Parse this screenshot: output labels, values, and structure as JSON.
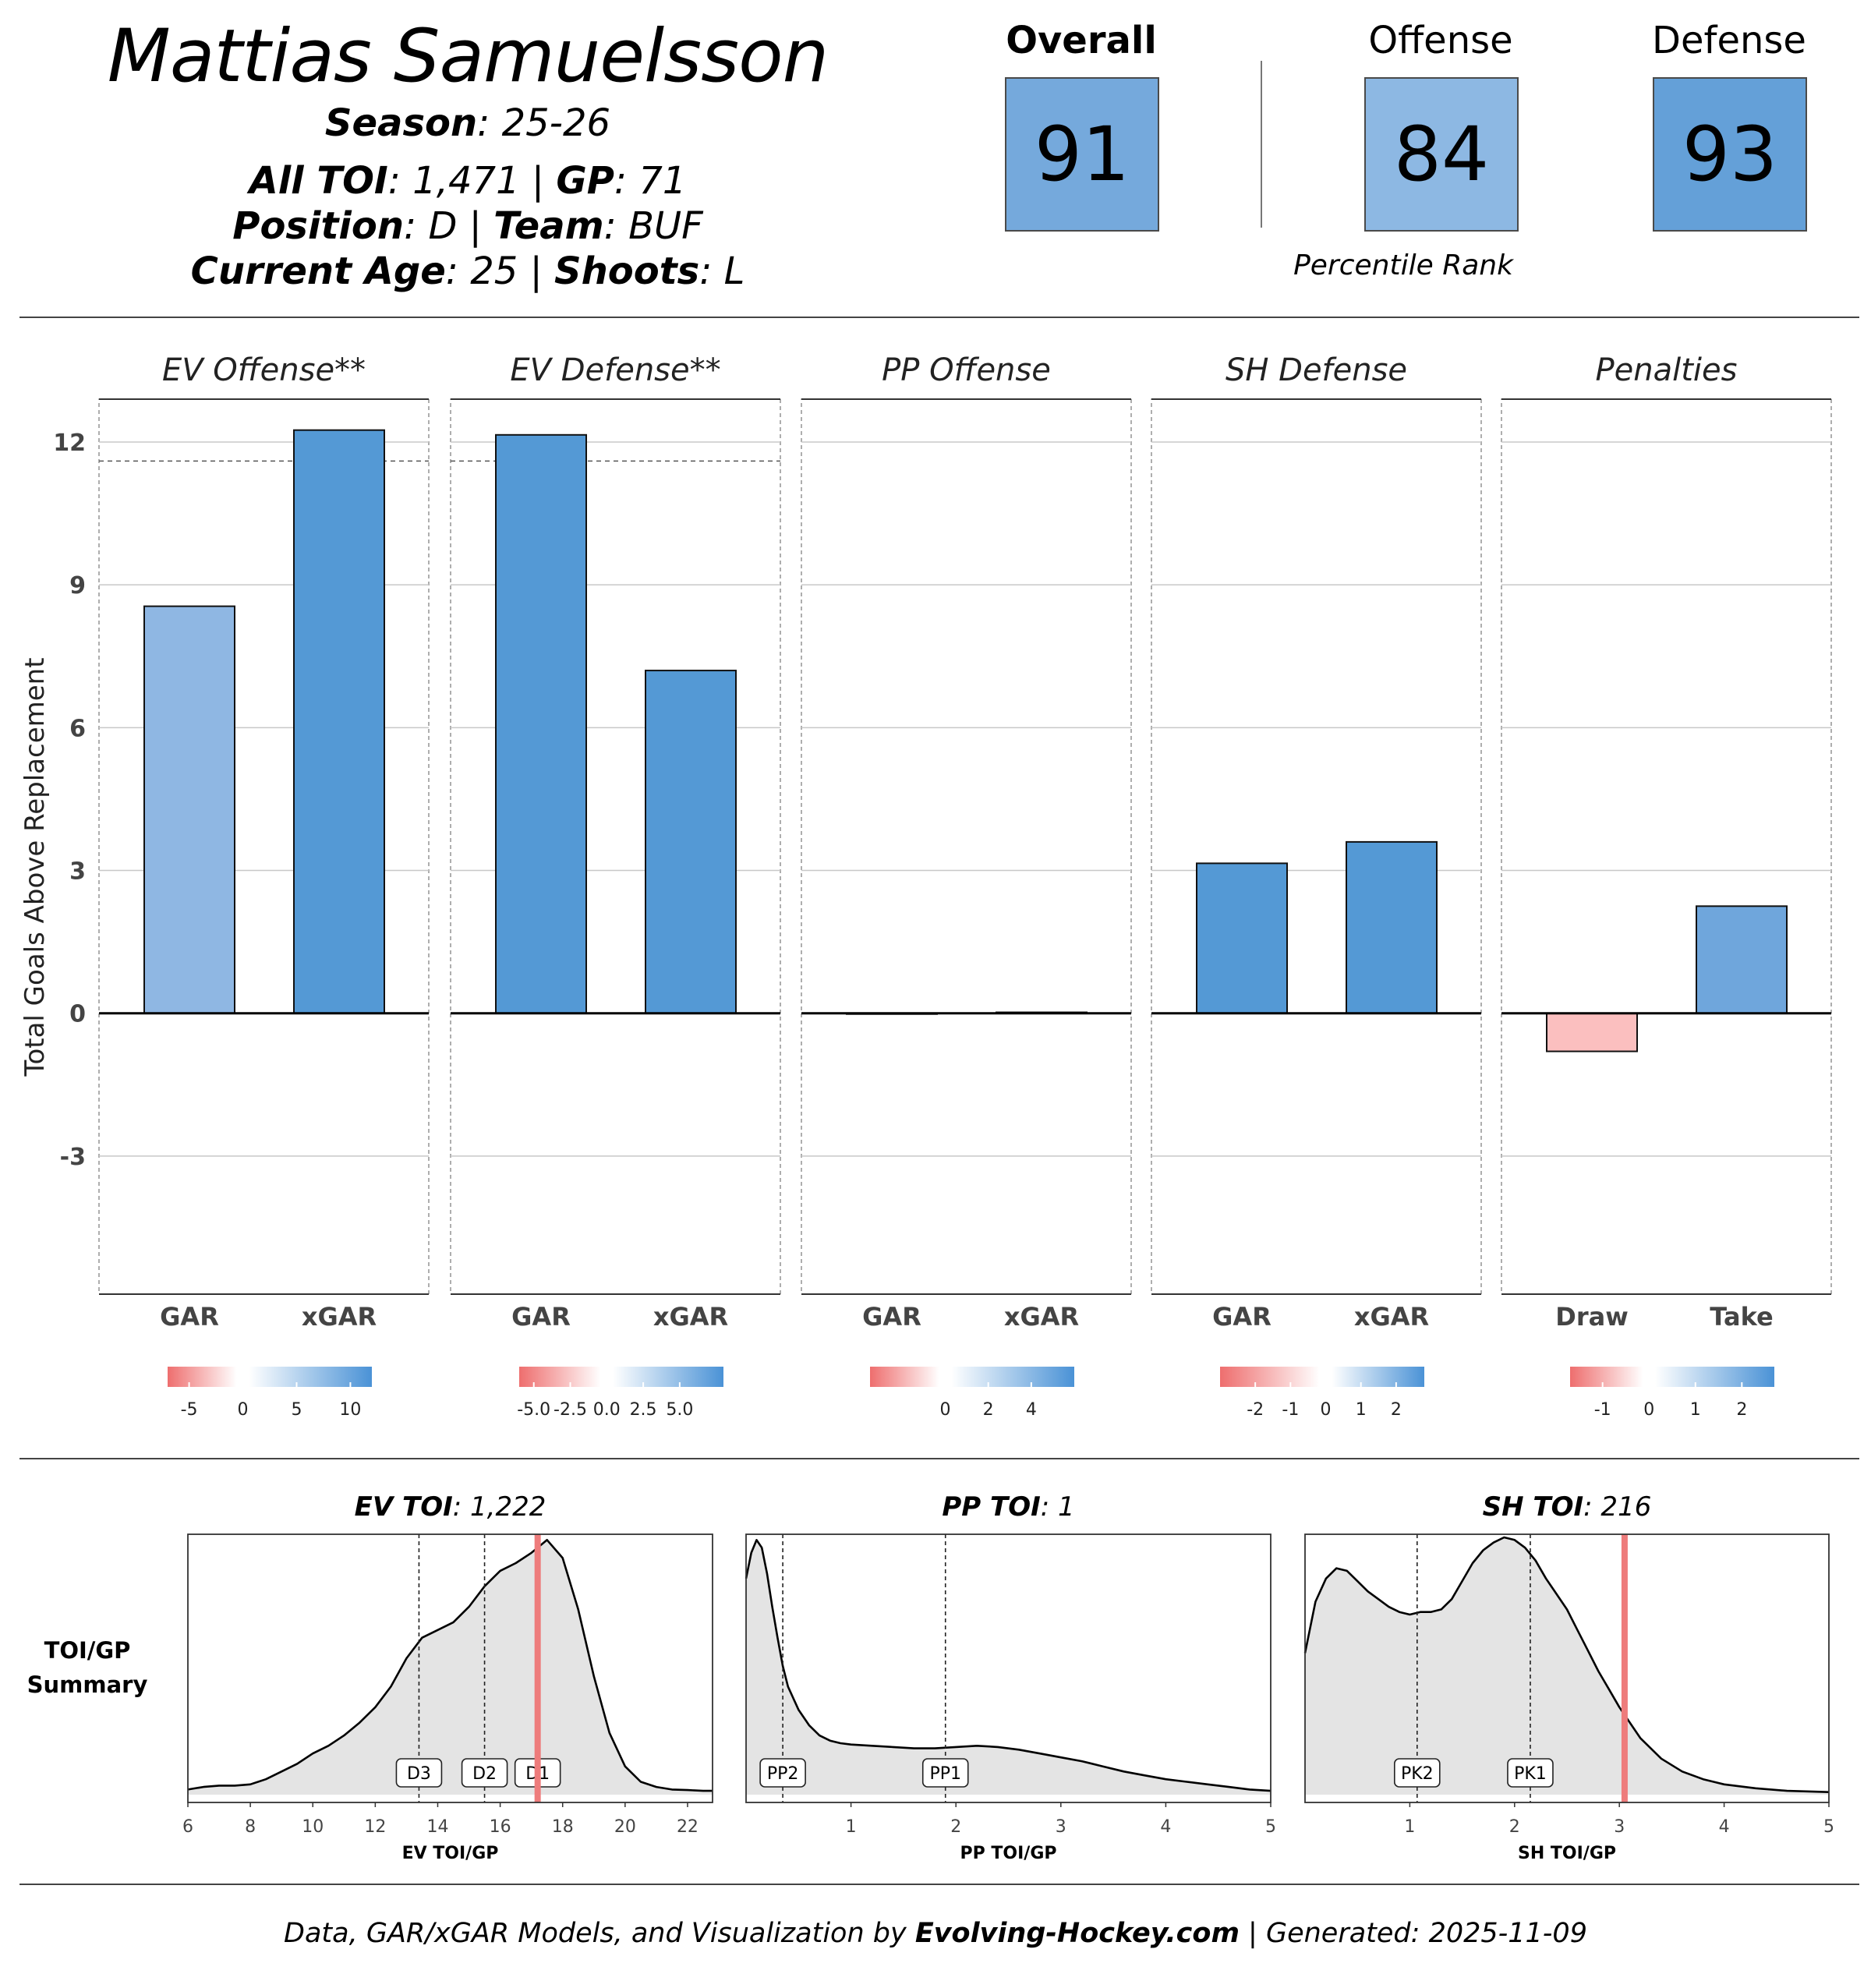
{
  "header": {
    "player_name": "Mattias Samuelsson",
    "season_label": "Season",
    "season_value": "25-26",
    "toi_label": "All TOI",
    "toi_value": "1,471",
    "gp_label": "GP",
    "gp_value": "71",
    "position_label": "Position",
    "position_value": "D",
    "team_label": "Team",
    "team_value": "BUF",
    "age_label": "Current Age",
    "age_value": "25",
    "shoots_label": "Shoots",
    "shoots_value": "L"
  },
  "scores": {
    "overall_label": "Overall",
    "overall_value": "91",
    "offense_label": "Offense",
    "offense_value": "84",
    "defense_label": "Defense",
    "defense_value": "93",
    "rank_note": "Percentile Rank",
    "colors": {
      "overall": "#75a9dc",
      "offense": "#8db8e3",
      "defense": "#64a0d8"
    }
  },
  "chart_data": [
    {
      "type": "bar",
      "title": "Total Goals Above Replacement",
      "ylabel": "Total Goals Above Replacement",
      "ylim": [
        -5.9,
        12.9
      ],
      "yticks": [
        12,
        9,
        6,
        3,
        0,
        -3
      ],
      "ytick_labels": [
        "12",
        "9",
        "6",
        "3",
        "0",
        "-3"
      ],
      "panels": [
        {
          "title": "EV Offense**",
          "categories": [
            "GAR",
            "xGAR"
          ],
          "values": [
            8.55,
            12.25
          ],
          "colors": [
            "#8fb7e3",
            "#5499d5"
          ],
          "reference_line": 11.6,
          "colorbar": {
            "ticks": [
              -5,
              0,
              5,
              10
            ],
            "labels": [
              "-5",
              "0",
              "5",
              "10"
            ],
            "range": [
              -7,
              12
            ]
          }
        },
        {
          "title": "EV Defense**",
          "categories": [
            "GAR",
            "xGAR"
          ],
          "values": [
            12.15,
            7.2
          ],
          "colors": [
            "#5499d5",
            "#5499d5"
          ],
          "reference_line": 11.6,
          "colorbar": {
            "ticks": [
              -5,
              -2.5,
              0,
              2.5,
              5
            ],
            "labels": [
              "-5.0",
              "-2.5",
              "0.0",
              "2.5",
              "5.0"
            ],
            "range": [
              -6,
              8
            ]
          }
        },
        {
          "title": "PP Offense",
          "categories": [
            "GAR",
            "xGAR"
          ],
          "values": [
            0.0,
            0.02
          ],
          "colors": [
            "#5499d5",
            "#5499d5"
          ],
          "reference_line": null,
          "colorbar": {
            "ticks": [
              0,
              2,
              4
            ],
            "labels": [
              "0",
              "2",
              "4"
            ],
            "range": [
              -3.5,
              6
            ]
          }
        },
        {
          "title": "SH Defense",
          "categories": [
            "GAR",
            "xGAR"
          ],
          "values": [
            3.15,
            3.6
          ],
          "colors": [
            "#5499d5",
            "#5499d5"
          ],
          "reference_line": null,
          "colorbar": {
            "ticks": [
              -2,
              -1,
              0,
              1,
              2
            ],
            "labels": [
              "-2",
              "-1",
              "0",
              "1",
              "2"
            ],
            "range": [
              -3,
              2.8
            ]
          }
        },
        {
          "title": "Penalties",
          "categories": [
            "Draw",
            "Take"
          ],
          "values": [
            -0.8,
            2.25
          ],
          "colors": [
            "#fbbfbf",
            "#6fa6dc"
          ],
          "reference_line": null,
          "colorbar": {
            "ticks": [
              -1,
              0,
              1,
              2
            ],
            "labels": [
              "-1",
              "0",
              "1",
              "2"
            ],
            "range": [
              -1.7,
              2.7
            ]
          }
        }
      ]
    },
    {
      "type": "area",
      "title": "TOI/GP Summary",
      "row_label_line1": "TOI/GP",
      "row_label_line2": "Summary",
      "panels": [
        {
          "title_bold": "EV TOI",
          "title_value": ": 1,222",
          "xlabel": "EV TOI/GP",
          "xlim": [
            6,
            22.8
          ],
          "xticks": [
            6,
            8,
            10,
            12,
            14,
            16,
            18,
            20,
            22
          ],
          "xtick_labels": [
            "6",
            "8",
            "10",
            "12",
            "14",
            "16",
            "18",
            "20",
            "22"
          ],
          "density_x": [
            6.0,
            6.5,
            7.0,
            7.5,
            8.0,
            8.5,
            9.0,
            9.5,
            10.0,
            10.5,
            11.0,
            11.5,
            12.0,
            12.5,
            13.0,
            13.5,
            14.0,
            14.5,
            15.0,
            15.5,
            16.0,
            16.5,
            17.0,
            17.5,
            18.0,
            18.5,
            19.0,
            19.5,
            20.0,
            20.5,
            21.0,
            21.5,
            22.0,
            22.5,
            22.8
          ],
          "density_y": [
            0.02,
            0.03,
            0.035,
            0.035,
            0.04,
            0.06,
            0.09,
            0.12,
            0.16,
            0.19,
            0.23,
            0.28,
            0.34,
            0.42,
            0.53,
            0.61,
            0.64,
            0.67,
            0.73,
            0.81,
            0.87,
            0.9,
            0.94,
            0.99,
            0.92,
            0.72,
            0.46,
            0.24,
            0.11,
            0.05,
            0.03,
            0.02,
            0.018,
            0.015,
            0.015
          ],
          "markers": [
            {
              "label": "D3",
              "x": 13.4
            },
            {
              "label": "D2",
              "x": 15.5
            },
            {
              "label": "D1",
              "x": 17.2
            }
          ],
          "player_value": 17.2
        },
        {
          "title_bold": "PP TOI",
          "title_value": ": 1",
          "xlabel": "PP TOI/GP",
          "xlim": [
            0,
            5
          ],
          "xticks": [
            1,
            2,
            3,
            4,
            5
          ],
          "xtick_labels": [
            "1",
            "2",
            "3",
            "4",
            "5"
          ],
          "density_x": [
            0.0,
            0.05,
            0.1,
            0.15,
            0.2,
            0.25,
            0.3,
            0.35,
            0.4,
            0.5,
            0.6,
            0.7,
            0.8,
            0.9,
            1.0,
            1.2,
            1.4,
            1.6,
            1.8,
            2.0,
            2.2,
            2.4,
            2.6,
            2.8,
            3.0,
            3.2,
            3.4,
            3.6,
            3.8,
            4.0,
            4.2,
            4.4,
            4.6,
            4.8,
            5.0
          ],
          "density_y": [
            0.84,
            0.94,
            0.99,
            0.96,
            0.86,
            0.73,
            0.61,
            0.5,
            0.42,
            0.33,
            0.27,
            0.23,
            0.21,
            0.2,
            0.195,
            0.19,
            0.185,
            0.18,
            0.18,
            0.185,
            0.19,
            0.185,
            0.175,
            0.16,
            0.145,
            0.13,
            0.11,
            0.09,
            0.075,
            0.06,
            0.05,
            0.04,
            0.03,
            0.02,
            0.015
          ],
          "markers": [
            {
              "label": "PP2",
              "x": 0.35
            },
            {
              "label": "PP1",
              "x": 1.9
            }
          ],
          "player_value": null
        },
        {
          "title_bold": "SH TOI",
          "title_value": ": 216",
          "xlabel": "SH TOI/GP",
          "xlim": [
            0,
            5
          ],
          "xticks": [
            1,
            2,
            3,
            4,
            5
          ],
          "xtick_labels": [
            "1",
            "2",
            "3",
            "4",
            "5"
          ],
          "density_x": [
            0.0,
            0.1,
            0.2,
            0.3,
            0.4,
            0.5,
            0.6,
            0.7,
            0.8,
            0.9,
            1.0,
            1.1,
            1.2,
            1.3,
            1.4,
            1.5,
            1.6,
            1.7,
            1.8,
            1.9,
            2.0,
            2.1,
            2.2,
            2.3,
            2.4,
            2.5,
            2.6,
            2.7,
            2.8,
            2.9,
            3.0,
            3.2,
            3.4,
            3.6,
            3.8,
            4.0,
            4.3,
            4.6,
            5.0
          ],
          "density_y": [
            0.55,
            0.75,
            0.84,
            0.88,
            0.87,
            0.83,
            0.79,
            0.76,
            0.73,
            0.71,
            0.7,
            0.71,
            0.71,
            0.72,
            0.76,
            0.83,
            0.9,
            0.95,
            0.98,
            1.0,
            0.99,
            0.96,
            0.91,
            0.84,
            0.78,
            0.72,
            0.64,
            0.56,
            0.48,
            0.41,
            0.34,
            0.22,
            0.14,
            0.09,
            0.06,
            0.04,
            0.025,
            0.015,
            0.01
          ],
          "markers": [
            {
              "label": "PK2",
              "x": 1.07
            },
            {
              "label": "PK1",
              "x": 2.15
            }
          ],
          "player_value": 3.05
        }
      ]
    }
  ],
  "footer": {
    "prefix": "Data, GAR/xGAR Models, and Visualization by ",
    "site": "Evolving-Hockey.com",
    "suffix": " | Generated: 2025-11-09"
  },
  "colors": {
    "bar_positive": "#5499d5",
    "bar_negative": "#fbbfbf",
    "player_line": "#ee7c7c",
    "density_fill": "#e4e4e4",
    "grid": "#c8c8c8"
  }
}
